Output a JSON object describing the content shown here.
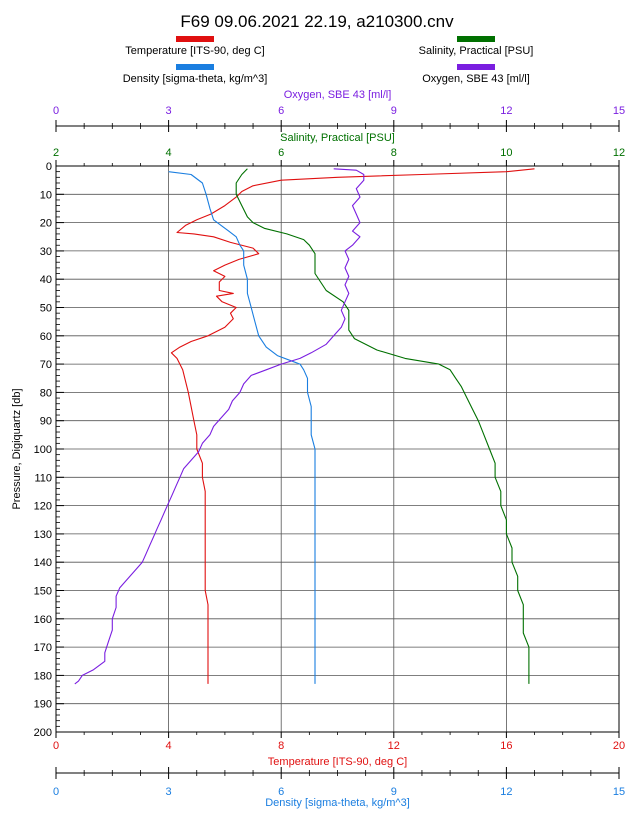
{
  "chart_data": {
    "type": "line",
    "title": "F69 09.06.2021 22.19, a210300.cnv",
    "colors": {
      "temperature": "#e01010",
      "salinity": "#007000",
      "density": "#1a7ee0",
      "oxygen": "#7a1ee0",
      "axis": "#000000"
    },
    "legend": {
      "placement": "top",
      "items": [
        {
          "label": "Temperature [ITS-90, deg C]",
          "color": "#e01010"
        },
        {
          "label": "Salinity, Practical [PSU]",
          "color": "#007000"
        },
        {
          "label": "Density [sigma-theta, kg/m^3]",
          "color": "#1a7ee0"
        },
        {
          "label": "Oxygen, SBE 43 [ml/l]",
          "color": "#7a1ee0"
        }
      ]
    },
    "y_axis": {
      "label": "Pressure, Digiquartz [db]",
      "range": [
        0,
        200
      ],
      "inverted": true,
      "ticks": [
        "0",
        "10",
        "20",
        "30",
        "40",
        "50",
        "60",
        "70",
        "80",
        "90",
        "100",
        "110",
        "120",
        "130",
        "140",
        "150",
        "160",
        "170",
        "180",
        "190",
        "200"
      ]
    },
    "x_axes": [
      {
        "id": "oxygen",
        "label": "Oxygen, SBE 43 [ml/l]",
        "position": "top-outer",
        "range": [
          0,
          15
        ],
        "ticks": [
          "0",
          "3",
          "6",
          "9",
          "12",
          "15"
        ],
        "color": "#7a1ee0"
      },
      {
        "id": "salinity",
        "label": "Salinity, Practical [PSU]",
        "position": "top-inner",
        "range": [
          2,
          12
        ],
        "ticks": [
          "2",
          "4",
          "6",
          "8",
          "10",
          "12"
        ],
        "color": "#007000"
      },
      {
        "id": "temperature",
        "label": "Temperature [ITS-90, deg C]",
        "position": "bottom-inner",
        "range": [
          0,
          20
        ],
        "ticks": [
          "0",
          "4",
          "8",
          "12",
          "16",
          "20"
        ],
        "color": "#e01010"
      },
      {
        "id": "density",
        "label": "Density [sigma-theta, kg/m^3]",
        "position": "bottom-outer",
        "range": [
          0,
          15
        ],
        "ticks": [
          "0",
          "3",
          "6",
          "9",
          "12",
          "15"
        ],
        "color": "#1a7ee0"
      }
    ],
    "grid": true,
    "series": [
      {
        "name": "Temperature [ITS-90, deg C]",
        "axis": "temperature",
        "points": [
          [
            17.0,
            1
          ],
          [
            16.0,
            2
          ],
          [
            13.0,
            3
          ],
          [
            10.0,
            4
          ],
          [
            8.0,
            5
          ],
          [
            7.0,
            7
          ],
          [
            6.6,
            9
          ],
          [
            6.4,
            11
          ],
          [
            6.0,
            14
          ],
          [
            5.5,
            17
          ],
          [
            5.0,
            19
          ],
          [
            4.6,
            21
          ],
          [
            4.3,
            23.5
          ],
          [
            4.9,
            24
          ],
          [
            5.6,
            25
          ],
          [
            6.2,
            27
          ],
          [
            7.0,
            29
          ],
          [
            7.2,
            31
          ],
          [
            6.5,
            33
          ],
          [
            6.0,
            35
          ],
          [
            5.6,
            37
          ],
          [
            6.0,
            39
          ],
          [
            5.8,
            41
          ],
          [
            5.8,
            44
          ],
          [
            6.3,
            45
          ],
          [
            5.7,
            46
          ],
          [
            5.9,
            48
          ],
          [
            6.4,
            50
          ],
          [
            6.2,
            52
          ],
          [
            6.3,
            54
          ],
          [
            6.0,
            57
          ],
          [
            5.4,
            60
          ],
          [
            4.8,
            62
          ],
          [
            4.4,
            64
          ],
          [
            4.1,
            66
          ],
          [
            4.3,
            68
          ],
          [
            4.5,
            72
          ],
          [
            4.6,
            76
          ],
          [
            4.7,
            80
          ],
          [
            4.8,
            85
          ],
          [
            4.9,
            90
          ],
          [
            5.0,
            95
          ],
          [
            5.0,
            100
          ],
          [
            5.2,
            105
          ],
          [
            5.2,
            110
          ],
          [
            5.3,
            115
          ],
          [
            5.3,
            120
          ],
          [
            5.3,
            125
          ],
          [
            5.3,
            130
          ],
          [
            5.3,
            135
          ],
          [
            5.3,
            140
          ],
          [
            5.3,
            145
          ],
          [
            5.3,
            150
          ],
          [
            5.4,
            155
          ],
          [
            5.4,
            160
          ],
          [
            5.4,
            165
          ],
          [
            5.4,
            170
          ],
          [
            5.4,
            175
          ],
          [
            5.4,
            180
          ],
          [
            5.4,
            183
          ]
        ]
      },
      {
        "name": "Salinity, Practical [PSU]",
        "axis": "salinity",
        "points": [
          [
            5.4,
            1
          ],
          [
            5.3,
            3
          ],
          [
            5.2,
            6
          ],
          [
            5.2,
            10
          ],
          [
            5.3,
            14
          ],
          [
            5.4,
            18
          ],
          [
            5.5,
            20
          ],
          [
            5.7,
            22
          ],
          [
            6.1,
            24
          ],
          [
            6.4,
            26
          ],
          [
            6.5,
            28
          ],
          [
            6.6,
            31
          ],
          [
            6.6,
            35
          ],
          [
            6.6,
            38
          ],
          [
            6.7,
            41
          ],
          [
            6.8,
            44
          ],
          [
            7.1,
            48
          ],
          [
            7.2,
            51
          ],
          [
            7.2,
            55
          ],
          [
            7.2,
            58
          ],
          [
            7.3,
            61
          ],
          [
            7.7,
            65
          ],
          [
            8.2,
            68
          ],
          [
            8.8,
            70
          ],
          [
            9.0,
            72
          ],
          [
            9.1,
            75
          ],
          [
            9.2,
            78
          ],
          [
            9.3,
            82
          ],
          [
            9.4,
            86
          ],
          [
            9.5,
            90
          ],
          [
            9.6,
            95
          ],
          [
            9.7,
            100
          ],
          [
            9.8,
            105
          ],
          [
            9.8,
            110
          ],
          [
            9.9,
            115
          ],
          [
            9.9,
            120
          ],
          [
            10.0,
            125
          ],
          [
            10.0,
            130
          ],
          [
            10.1,
            135
          ],
          [
            10.1,
            140
          ],
          [
            10.2,
            145
          ],
          [
            10.2,
            150
          ],
          [
            10.3,
            155
          ],
          [
            10.3,
            160
          ],
          [
            10.3,
            165
          ],
          [
            10.4,
            170
          ],
          [
            10.4,
            175
          ],
          [
            10.4,
            180
          ],
          [
            10.4,
            183
          ]
        ]
      },
      {
        "name": "Density [sigma-theta, kg/m^3]",
        "axis": "density",
        "points": [
          [
            3.0,
            2
          ],
          [
            3.6,
            3
          ],
          [
            3.9,
            6
          ],
          [
            4.0,
            10
          ],
          [
            4.1,
            15
          ],
          [
            4.2,
            19
          ],
          [
            4.4,
            21
          ],
          [
            4.6,
            23
          ],
          [
            4.8,
            25
          ],
          [
            4.9,
            28
          ],
          [
            5.0,
            30
          ],
          [
            5.0,
            35
          ],
          [
            5.1,
            40
          ],
          [
            5.1,
            45
          ],
          [
            5.2,
            50
          ],
          [
            5.3,
            55
          ],
          [
            5.4,
            60
          ],
          [
            5.6,
            64
          ],
          [
            5.9,
            67
          ],
          [
            6.3,
            69
          ],
          [
            6.5,
            70
          ],
          [
            6.6,
            72
          ],
          [
            6.7,
            75
          ],
          [
            6.7,
            80
          ],
          [
            6.8,
            85
          ],
          [
            6.8,
            90
          ],
          [
            6.8,
            95
          ],
          [
            6.9,
            100
          ],
          [
            6.9,
            105
          ],
          [
            6.9,
            110
          ],
          [
            6.9,
            115
          ],
          [
            6.9,
            120
          ],
          [
            6.9,
            125
          ],
          [
            6.9,
            130
          ],
          [
            6.9,
            135
          ],
          [
            6.9,
            140
          ],
          [
            6.9,
            145
          ],
          [
            6.9,
            150
          ],
          [
            6.9,
            155
          ],
          [
            6.9,
            160
          ],
          [
            6.9,
            165
          ],
          [
            6.9,
            170
          ],
          [
            6.9,
            175
          ],
          [
            6.9,
            180
          ],
          [
            6.9,
            183
          ]
        ]
      },
      {
        "name": "Oxygen, SBE 43 [ml/l]",
        "axis": "oxygen",
        "points": [
          [
            7.4,
            1
          ],
          [
            8.0,
            1.5
          ],
          [
            8.2,
            3
          ],
          [
            8.2,
            5
          ],
          [
            8.0,
            8
          ],
          [
            8.1,
            11
          ],
          [
            7.9,
            14
          ],
          [
            8.0,
            17
          ],
          [
            8.1,
            20
          ],
          [
            7.9,
            23
          ],
          [
            8.1,
            25
          ],
          [
            7.9,
            28
          ],
          [
            7.7,
            30
          ],
          [
            7.8,
            33
          ],
          [
            7.7,
            36
          ],
          [
            7.8,
            39
          ],
          [
            7.7,
            42
          ],
          [
            7.8,
            45
          ],
          [
            7.7,
            48
          ],
          [
            7.6,
            51
          ],
          [
            7.7,
            54
          ],
          [
            7.6,
            57
          ],
          [
            7.4,
            60
          ],
          [
            7.2,
            63
          ],
          [
            6.8,
            66
          ],
          [
            6.5,
            68
          ],
          [
            6.0,
            70
          ],
          [
            5.6,
            72
          ],
          [
            5.2,
            74
          ],
          [
            5.0,
            77
          ],
          [
            4.9,
            80
          ],
          [
            4.7,
            83
          ],
          [
            4.6,
            86
          ],
          [
            4.4,
            89
          ],
          [
            4.2,
            92
          ],
          [
            4.1,
            95
          ],
          [
            3.9,
            98
          ],
          [
            3.8,
            101
          ],
          [
            3.6,
            104
          ],
          [
            3.4,
            107
          ],
          [
            3.3,
            110
          ],
          [
            3.2,
            113
          ],
          [
            3.1,
            116
          ],
          [
            3.0,
            119
          ],
          [
            2.9,
            122
          ],
          [
            2.8,
            125
          ],
          [
            2.7,
            128
          ],
          [
            2.6,
            131
          ],
          [
            2.5,
            134
          ],
          [
            2.4,
            137
          ],
          [
            2.3,
            140
          ],
          [
            2.1,
            143
          ],
          [
            1.9,
            146
          ],
          [
            1.7,
            149
          ],
          [
            1.6,
            152
          ],
          [
            1.6,
            156
          ],
          [
            1.5,
            160
          ],
          [
            1.5,
            164
          ],
          [
            1.4,
            168
          ],
          [
            1.3,
            172
          ],
          [
            1.3,
            175
          ],
          [
            1.0,
            178
          ],
          [
            0.7,
            180
          ],
          [
            0.6,
            182
          ],
          [
            0.5,
            183
          ]
        ]
      }
    ]
  }
}
